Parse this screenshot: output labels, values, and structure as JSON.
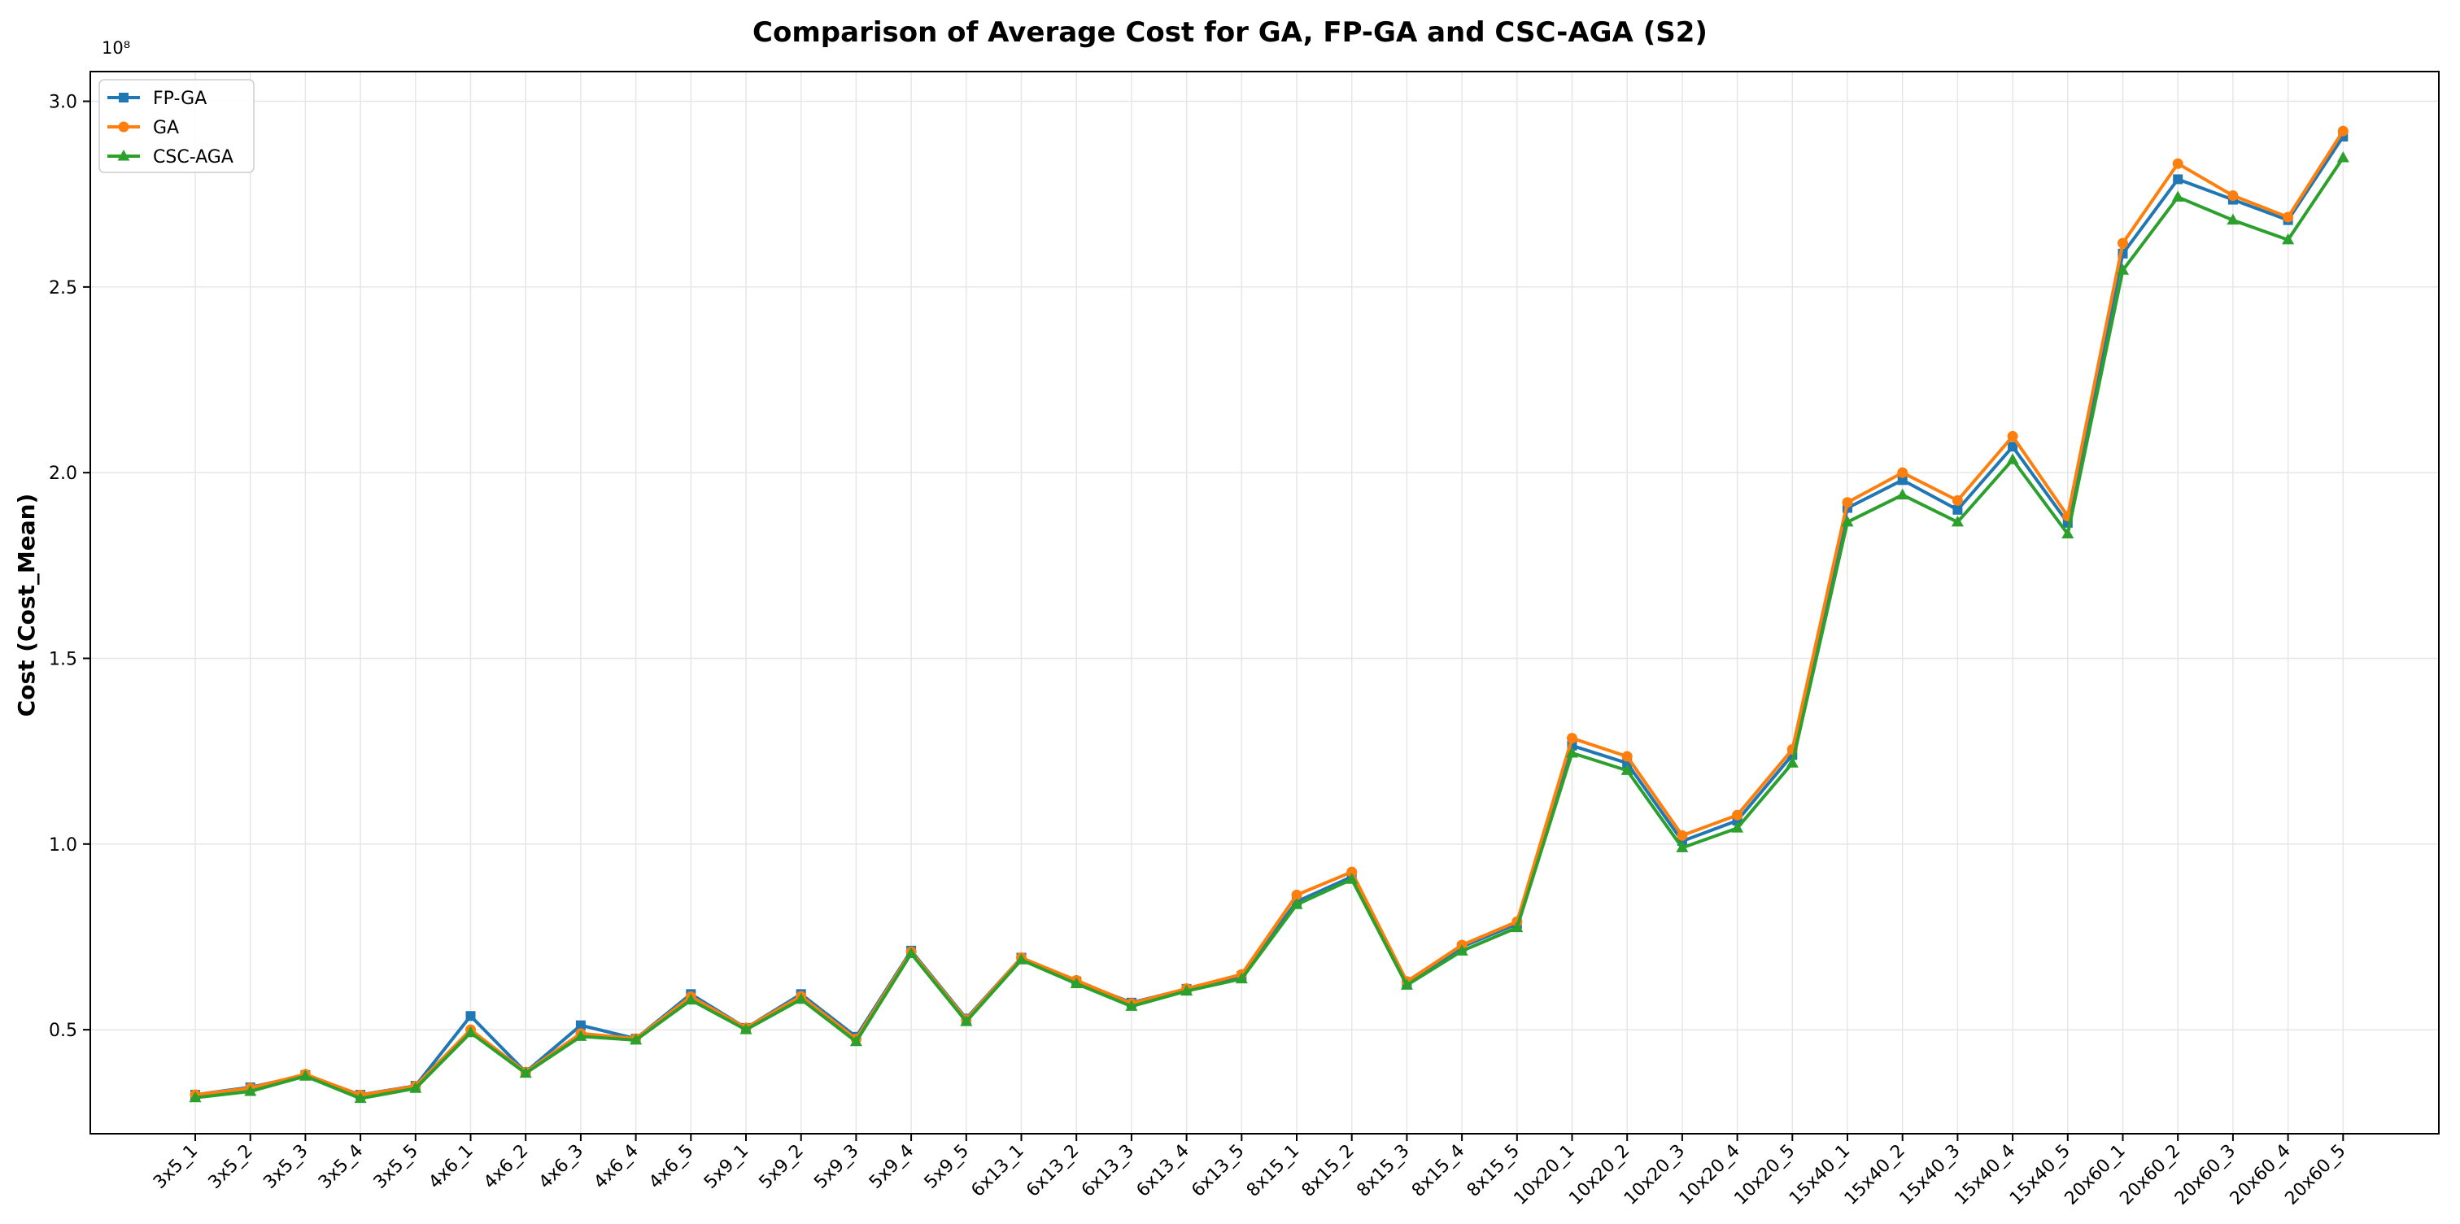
{
  "chart_data": {
    "type": "line",
    "title": "Comparison of Average Cost for GA, FP-GA and CSC-AGA (S2)",
    "xlabel": "",
    "ylabel": "Cost (Cost_Mean)",
    "y_scale_label": "10⁸",
    "ylim": [
      0.22,
      3.08
    ],
    "yticks": [
      0.5,
      1.0,
      1.5,
      2.0,
      2.5,
      3.0
    ],
    "ytick_labels": [
      "0.5",
      "1.0",
      "1.5",
      "2.0",
      "2.5",
      "3.0"
    ],
    "grid": true,
    "legend_position": "top-left",
    "categories": [
      "3x5_1",
      "3x5_2",
      "3x5_3",
      "3x5_4",
      "3x5_5",
      "4x6_1",
      "4x6_2",
      "4x6_3",
      "4x6_4",
      "4x6_5",
      "5x9_1",
      "5x9_2",
      "5x9_3",
      "5x9_4",
      "5x9_5",
      "6x13_1",
      "6x13_2",
      "6x13_3",
      "6x13_4",
      "6x13_5",
      "8x15_1",
      "8x15_2",
      "8x15_3",
      "8x15_4",
      "8x15_5",
      "10x20_1",
      "10x20_2",
      "10x20_3",
      "10x20_4",
      "10x20_5",
      "15x40_1",
      "15x40_2",
      "15x40_3",
      "15x40_4",
      "15x40_5",
      "20x60_1",
      "20x60_2",
      "20x60_3",
      "20x60_4",
      "20x60_5"
    ],
    "series": [
      {
        "name": "FP-GA",
        "color": "#1f77b4",
        "marker": "square",
        "values": [
          0.325,
          0.345,
          0.378,
          0.325,
          0.349,
          0.537,
          0.386,
          0.512,
          0.476,
          0.596,
          0.505,
          0.596,
          0.481,
          0.713,
          0.53,
          0.694,
          0.63,
          0.573,
          0.61,
          0.645,
          0.845,
          0.912,
          0.625,
          0.723,
          0.785,
          1.265,
          1.218,
          1.008,
          1.063,
          1.24,
          1.905,
          1.98,
          1.9,
          2.07,
          1.865,
          2.59,
          2.79,
          2.735,
          2.68,
          2.905
        ]
      },
      {
        "name": "GA",
        "color": "#ff7f0e",
        "marker": "circle",
        "values": [
          0.325,
          0.343,
          0.38,
          0.324,
          0.348,
          0.5,
          0.386,
          0.49,
          0.476,
          0.589,
          0.505,
          0.59,
          0.475,
          0.71,
          0.527,
          0.694,
          0.633,
          0.571,
          0.611,
          0.649,
          0.863,
          0.925,
          0.63,
          0.728,
          0.791,
          1.285,
          1.236,
          1.023,
          1.078,
          1.255,
          1.92,
          2.0,
          1.925,
          2.098,
          1.883,
          2.618,
          2.832,
          2.746,
          2.688,
          2.92
        ]
      },
      {
        "name": "CSC-AGA",
        "color": "#2ca02c",
        "marker": "triangle",
        "values": [
          0.317,
          0.334,
          0.375,
          0.315,
          0.342,
          0.492,
          0.383,
          0.482,
          0.472,
          0.58,
          0.5,
          0.582,
          0.468,
          0.705,
          0.522,
          0.688,
          0.624,
          0.563,
          0.604,
          0.637,
          0.837,
          0.905,
          0.62,
          0.712,
          0.775,
          1.245,
          1.198,
          0.99,
          1.043,
          1.218,
          1.867,
          1.94,
          1.867,
          2.035,
          1.835,
          2.545,
          2.742,
          2.68,
          2.627,
          2.848
        ]
      }
    ]
  }
}
